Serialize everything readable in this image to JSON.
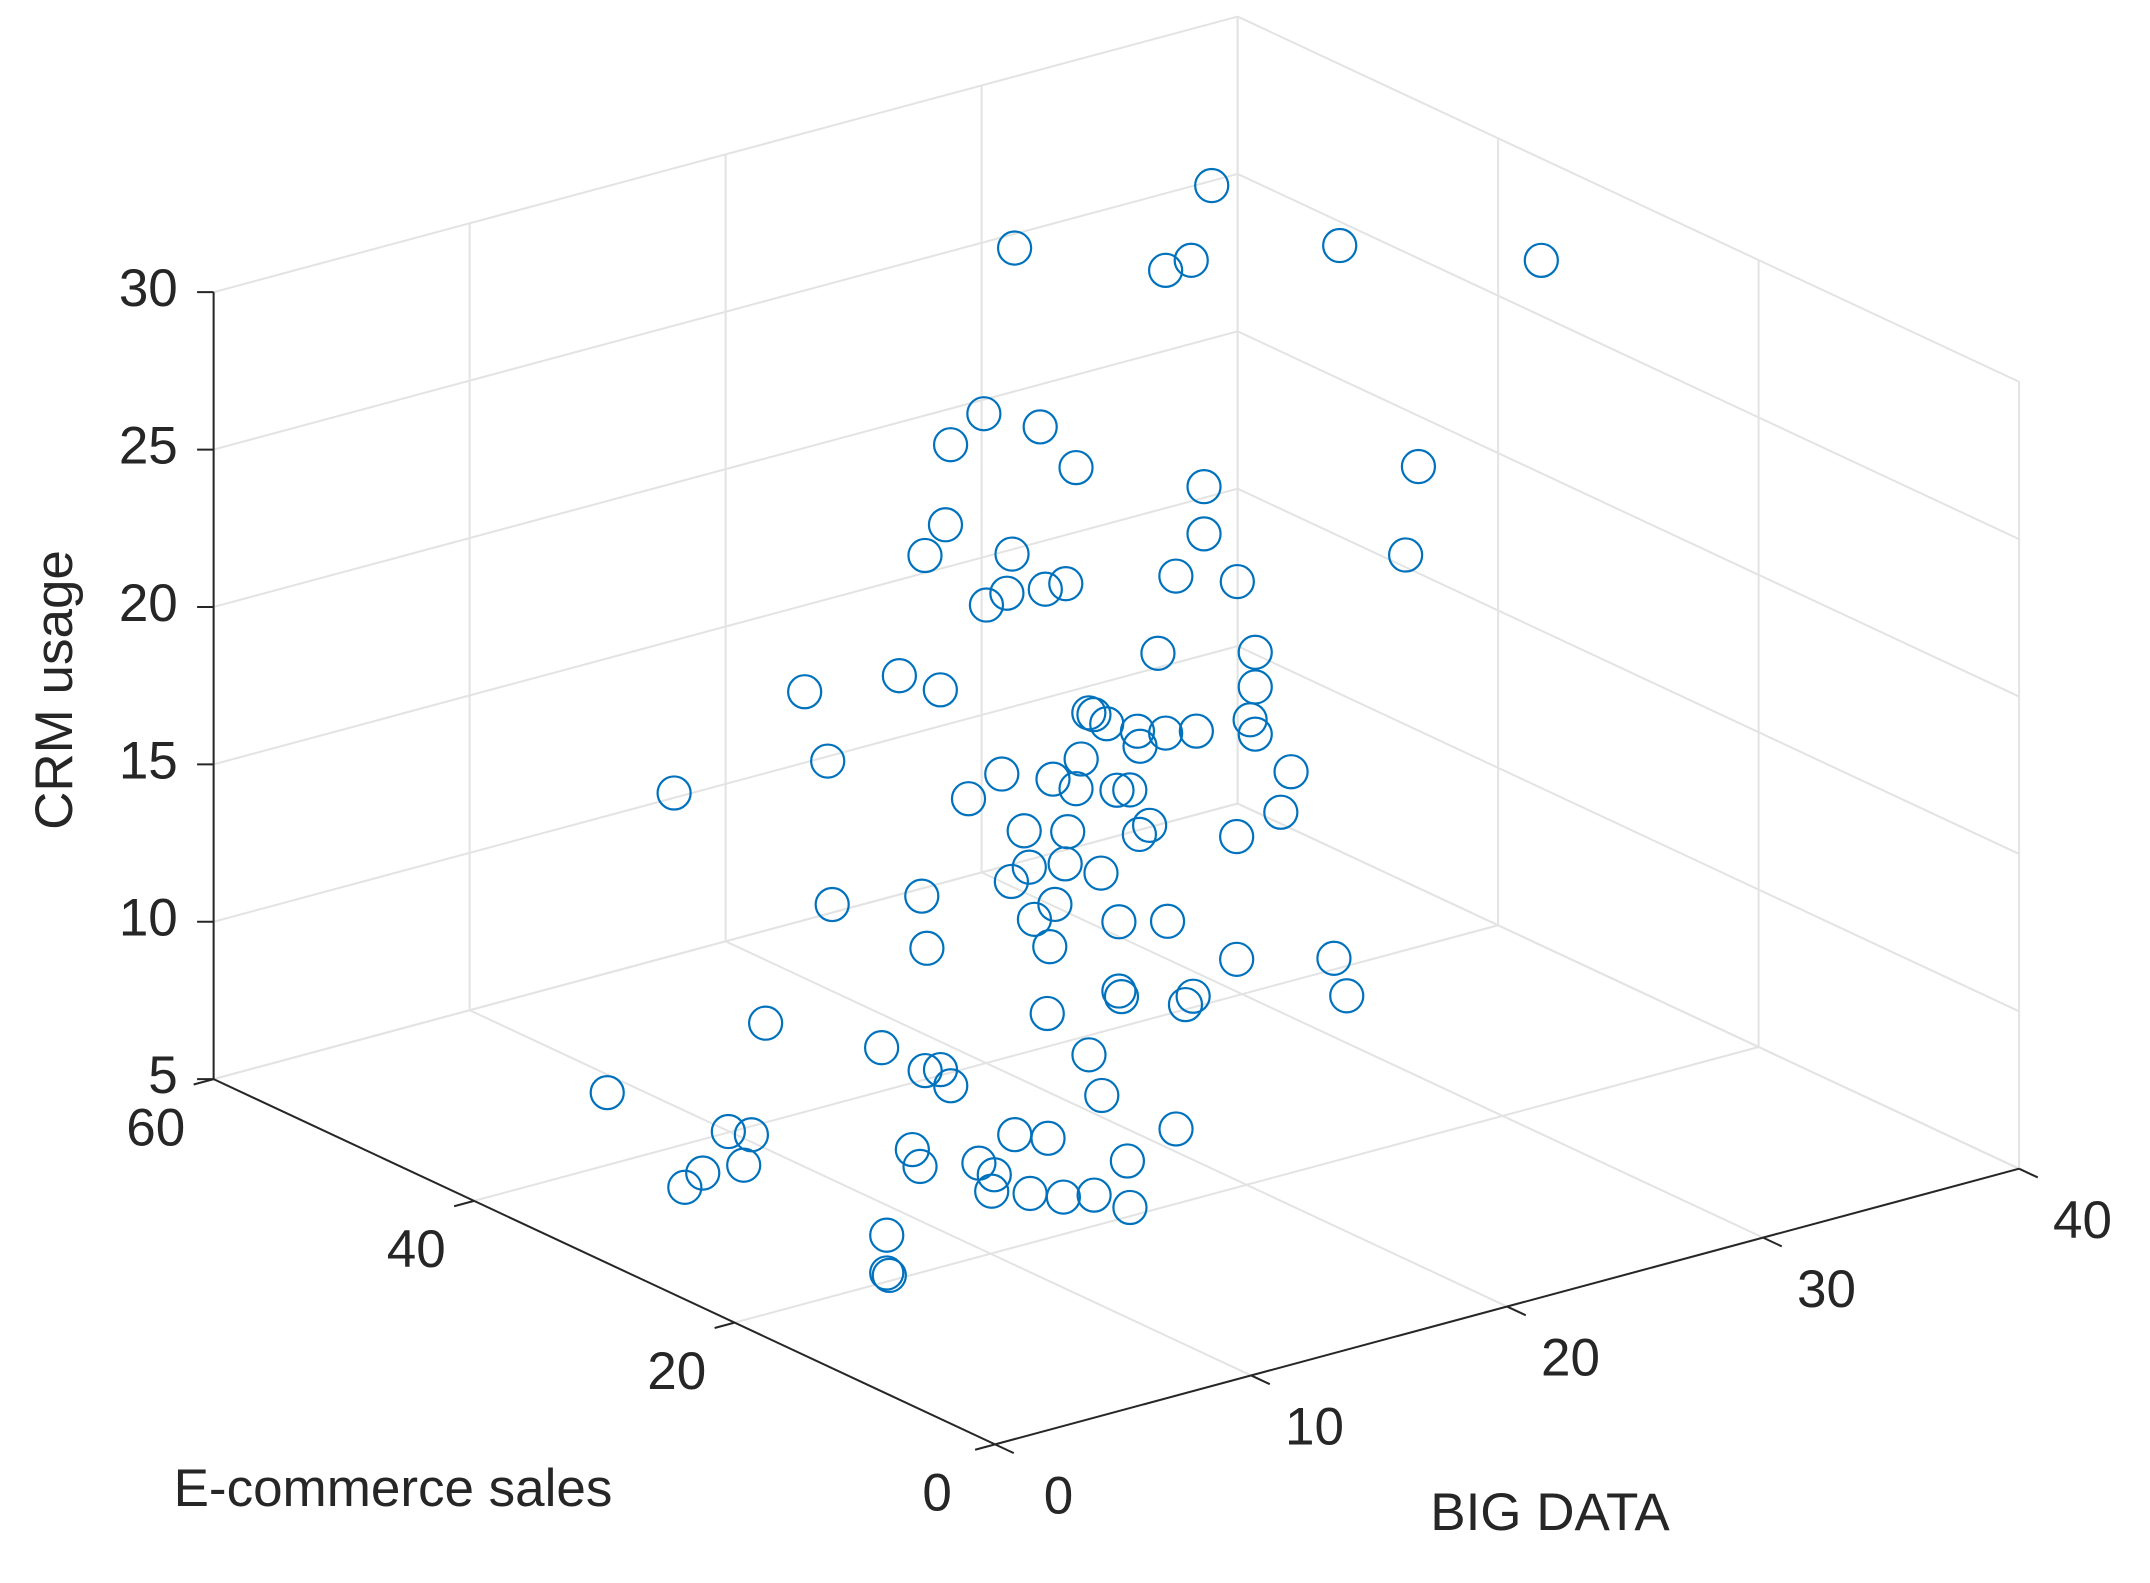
{
  "chart_data": {
    "type": "scatter3d",
    "xlabel": "BIG DATA",
    "ylabel": "E-commerce sales",
    "zlabel": "CRM usage",
    "xlim": [
      0,
      40
    ],
    "xticks": [
      0,
      10,
      20,
      30,
      40
    ],
    "ylim": [
      0,
      60
    ],
    "yticks": [
      0,
      20,
      40,
      60
    ],
    "zlim": [
      5,
      30
    ],
    "zticks": [
      5,
      10,
      15,
      20,
      25,
      30
    ],
    "grid": true,
    "series": [
      {
        "color": "#0072bd",
        "marker": "o",
        "x": [
          33.9,
          26.2,
          38.9,
          36.6,
          33.1,
          32.1,
          25.0,
          27.2,
          23.7,
          28.6,
          31.8,
          33.6,
          23.5,
          33.6,
          22.7,
          26.1,
          31.3,
          32.5,
          34.9,
          28.2,
          25.1,
          25.9,
          27.4,
          31.8,
          35.6,
          21.7,
          18.0,
          23.3,
          35.6,
          29.1,
          29.3,
          29.8,
          35.4,
          31.0,
          32.1,
          33.3,
          35.6,
          31.1,
          18.9,
          28.8,
          37.0,
          25.7,
          27.7,
          30.2,
          30.7,
          28.6,
          12.9,
          24.4,
          36.6,
          21.3,
          16.4,
          18.1,
          20.9,
          24.7,
          18.0,
          16.6,
          19.4,
          15.9,
          8.9,
          12.4,
          17.6,
          16.8,
          20.1,
          22.0,
          17.4,
          12.6,
          24.7,
          28.5,
          20.1,
          20.2,
          23.0,
          22.7,
          29.0,
          17.3,
          6.3,
          3.2,
          11.3,
          4.9,
          5.5,
          5.9,
          11.8,
          5.2,
          14.7,
          2.3,
          3.2,
          8.4,
          9.7,
          4.4,
          4.7,
          7.0,
          2.9,
          12.8,
          1.3,
          0.6,
          7.6,
          7.5,
          9.0,
          10.3,
          11.5,
          12.9,
          3.4,
          3.4,
          3.5
        ],
        "y": [
          50,
          50,
          50,
          30,
          50,
          50,
          50,
          50,
          50,
          50,
          30,
          50,
          50,
          50,
          50,
          50,
          30,
          50,
          50,
          50,
          50,
          50,
          50,
          50,
          50,
          50,
          50,
          50,
          50,
          50,
          50,
          50,
          50,
          50,
          50,
          50,
          50,
          50,
          50,
          50,
          50,
          50,
          50,
          50,
          50,
          50,
          50,
          50,
          50,
          30,
          30,
          30,
          30,
          30,
          30,
          30,
          30,
          30,
          30,
          30,
          30,
          30,
          30,
          30,
          30,
          30,
          30,
          30,
          30,
          30,
          30,
          30,
          30,
          30,
          30,
          15,
          15,
          15,
          15,
          15,
          15,
          40,
          15,
          25,
          25,
          15,
          15,
          15,
          15,
          15,
          25,
          15,
          25,
          25,
          15,
          15,
          15,
          15,
          15,
          15,
          15,
          15,
          15
        ],
        "z": [
          27.9,
          27.6,
          24.9,
          28.8,
          25.7,
          25.6,
          22.6,
          21.7,
          21.9,
          20.1,
          23.3,
          18.4,
          19.4,
          16.9,
          18.6,
          17.9,
          20.6,
          15.8,
          15.1,
          16.5,
          16.5,
          16.7,
          16.5,
          13.5,
          12.7,
          15.0,
          15.3,
          14.2,
          11.6,
          12.2,
          12.1,
          11.7,
          10.6,
          11.2,
          10.9,
          10.7,
          10.1,
          10.7,
          12.9,
          10.8,
          8.6,
          11.0,
          10.4,
          9.5,
          9.4,
          9.9,
          13.2,
          10.5,
          7.4,
          14.2,
          15.1,
          14.7,
          14.0,
          13.1,
          13.7,
          13.9,
          13.1,
          13.6,
          14.4,
          13.9,
          12.5,
          12.2,
          11.4,
          11.0,
          11.2,
          12.2,
          9.2,
          8.4,
          9.2,
          9.0,
          8.4,
          8.2,
          7.1,
          9.1,
          11.2,
          14.0,
          12.0,
          12.9,
          12.8,
          12.2,
          10.6,
          7.3,
          8.9,
          9.6,
          9.3,
          10.1,
          9.7,
          10.5,
          9.9,
          9.5,
          8.4,
          8.3,
          8.5,
          8.2,
          9.0,
          8.5,
          8.1,
          7.7,
          7.5,
          6.8,
          8.0,
          6.8,
          6.7
        ]
      }
    ]
  }
}
